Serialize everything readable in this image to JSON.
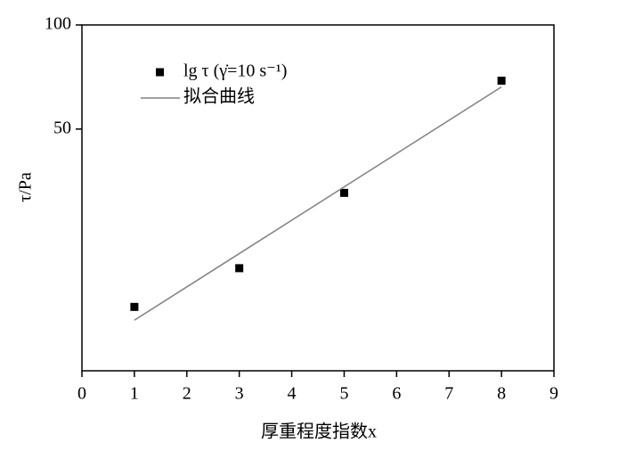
{
  "chart_data": {
    "type": "scatter",
    "xlabel": "厚重程度指数x",
    "ylabel": "τ/Pa",
    "xlim": [
      0,
      9
    ],
    "xticks": [
      0,
      1,
      2,
      3,
      4,
      5,
      6,
      7,
      8,
      9
    ],
    "ylim": [
      10,
      100
    ],
    "yticks": [
      50,
      100
    ],
    "log_y": true,
    "legend": "upper left",
    "series": [
      {
        "name": "lg τ (γ̇=10 s⁻¹)",
        "kind": "points",
        "color": "#000000",
        "x": [
          1,
          3,
          5,
          8
        ],
        "values": [
          15.3,
          19.8,
          32.7,
          69.0
        ]
      },
      {
        "name": "拟合曲线",
        "kind": "line",
        "color": "#808080",
        "x": [
          1,
          8
        ],
        "values": [
          14.0,
          66.2
        ]
      }
    ]
  }
}
